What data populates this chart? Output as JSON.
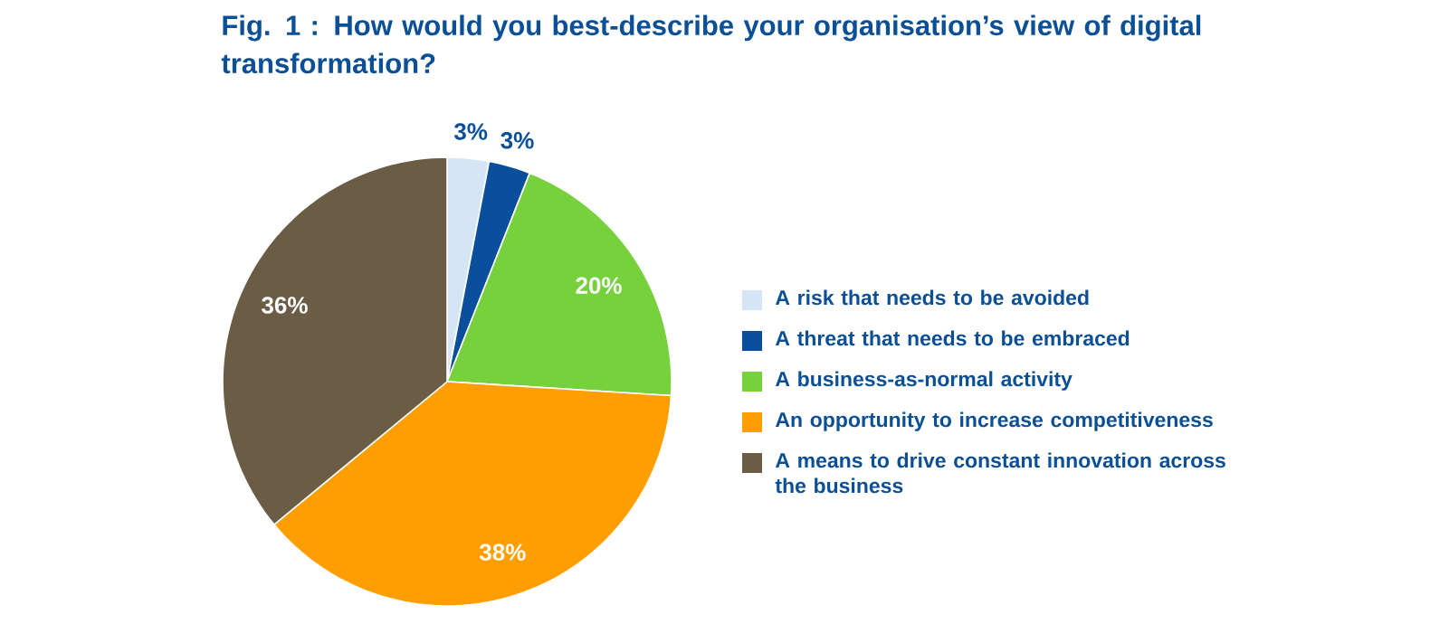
{
  "chart_data": {
    "type": "pie",
    "title": "Fig. 1 : How would you best-describe your organisation’s view of digital transformation?",
    "categories": [
      "A risk that needs to be avoided",
      "A threat that needs to be embraced",
      "A business-as-normal activity",
      "An opportunity to increase competitiveness",
      "A means to drive constant innovation across the business"
    ],
    "values": [
      3,
      3,
      20,
      38,
      36
    ],
    "value_labels": [
      "3%",
      "3%",
      "20%",
      "38%",
      "36%"
    ],
    "colors": [
      "#d5e5f5",
      "#0a4f9b",
      "#77d13c",
      "#ff9e00",
      "#6b5c46"
    ],
    "legend": "right"
  }
}
